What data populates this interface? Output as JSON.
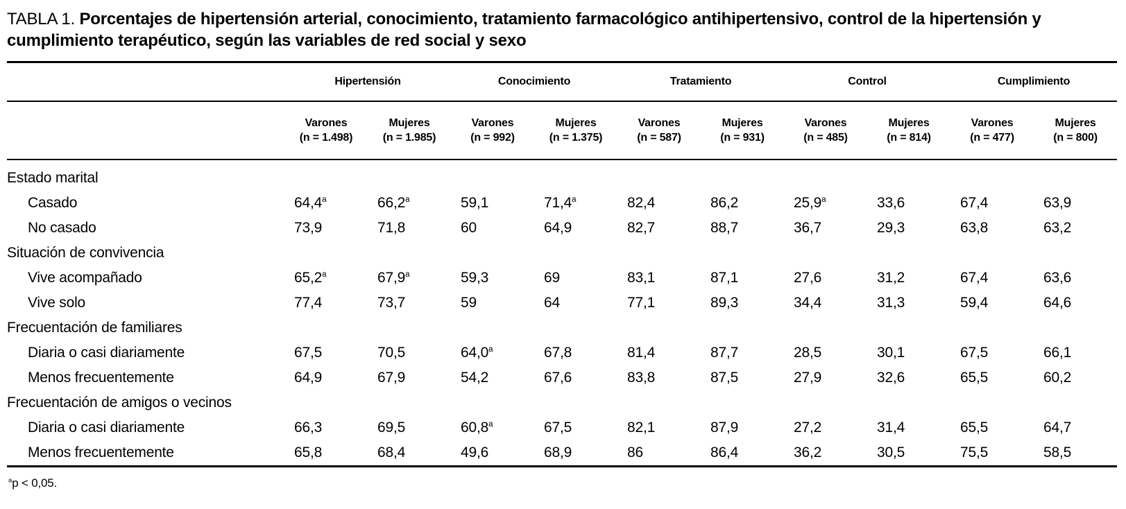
{
  "page": {
    "title_label": "TABLA 1.",
    "title_text": "Porcentajes de hipertensión arterial, conocimiento, tratamiento farmacológico antihipertensivo, control de la hipertensión y cumplimiento terapéutico, según las variables de red social y sexo",
    "footnote_sup": "a",
    "footnote_text": "p < 0,05."
  },
  "table": {
    "significance_marker": "a",
    "groups": [
      {
        "label": "Hipertensión",
        "columns": [
          {
            "sex": "Varones",
            "n": "(n = 1.498)"
          },
          {
            "sex": "Mujeres",
            "n": "(n = 1.985)"
          }
        ]
      },
      {
        "label": "Conocimiento",
        "columns": [
          {
            "sex": "Varones",
            "n": "(n = 992)"
          },
          {
            "sex": "Mujeres",
            "n": "(n = 1.375)"
          }
        ]
      },
      {
        "label": "Tratamiento",
        "columns": [
          {
            "sex": "Varones",
            "n": "(n = 587)"
          },
          {
            "sex": "Mujeres",
            "n": "(n = 931)"
          }
        ]
      },
      {
        "label": "Control",
        "columns": [
          {
            "sex": "Varones",
            "n": "(n = 485)"
          },
          {
            "sex": "Mujeres",
            "n": "(n = 814)"
          }
        ]
      },
      {
        "label": "Cumplimiento",
        "columns": [
          {
            "sex": "Varones",
            "n": "(n = 477)"
          },
          {
            "sex": "Mujeres",
            "n": "(n = 800)"
          }
        ]
      }
    ],
    "sections": [
      {
        "label": "Estado marital",
        "rows": [
          {
            "label": "Casado",
            "values": [
              "64,4^a",
              "66,2^a",
              "59,1",
              "71,4^a",
              "82,4",
              "86,2",
              "25,9^a",
              "33,6",
              "67,4",
              "63,9"
            ]
          },
          {
            "label": "No casado",
            "values": [
              "73,9",
              "71,8",
              "60",
              "64,9",
              "82,7",
              "88,7",
              "36,7",
              "29,3",
              "63,8",
              "63,2"
            ]
          }
        ]
      },
      {
        "label": "Situación de convivencia",
        "rows": [
          {
            "label": "Vive acompañado",
            "values": [
              "65,2^a",
              "67,9^a",
              "59,3",
              "69",
              "83,1",
              "87,1",
              "27,6",
              "31,2",
              "67,4",
              "63,6"
            ]
          },
          {
            "label": "Vive solo",
            "values": [
              "77,4",
              "73,7",
              "59",
              "64",
              "77,1",
              "89,3",
              "34,4",
              "31,3",
              "59,4",
              "64,6"
            ]
          }
        ]
      },
      {
        "label": "Frecuentación de familiares",
        "rows": [
          {
            "label": "Diaria o casi diariamente",
            "values": [
              "67,5",
              "70,5",
              "64,0^a",
              "67,8",
              "81,4",
              "87,7",
              "28,5",
              "30,1",
              "67,5",
              "66,1"
            ]
          },
          {
            "label": "Menos frecuentemente",
            "values": [
              "64,9",
              "67,9",
              "54,2",
              "67,6",
              "83,8",
              "87,5",
              "27,9",
              "32,6",
              "65,5",
              "60,2"
            ]
          }
        ]
      },
      {
        "label": "Frecuentación de amigos o vecinos",
        "rows": [
          {
            "label": "Diaria o casi diariamente",
            "values": [
              "66,3",
              "69,5",
              "60,8^a",
              "67,5",
              "82,1",
              "87,9",
              "27,2",
              "31,4",
              "65,5",
              "64,7"
            ]
          },
          {
            "label": "Menos frecuentemente",
            "values": [
              "65,8",
              "68,4",
              "49,6",
              "68,9",
              "86",
              "86,4",
              "36,2",
              "30,5",
              "75,5",
              "58,5"
            ]
          }
        ]
      }
    ]
  }
}
